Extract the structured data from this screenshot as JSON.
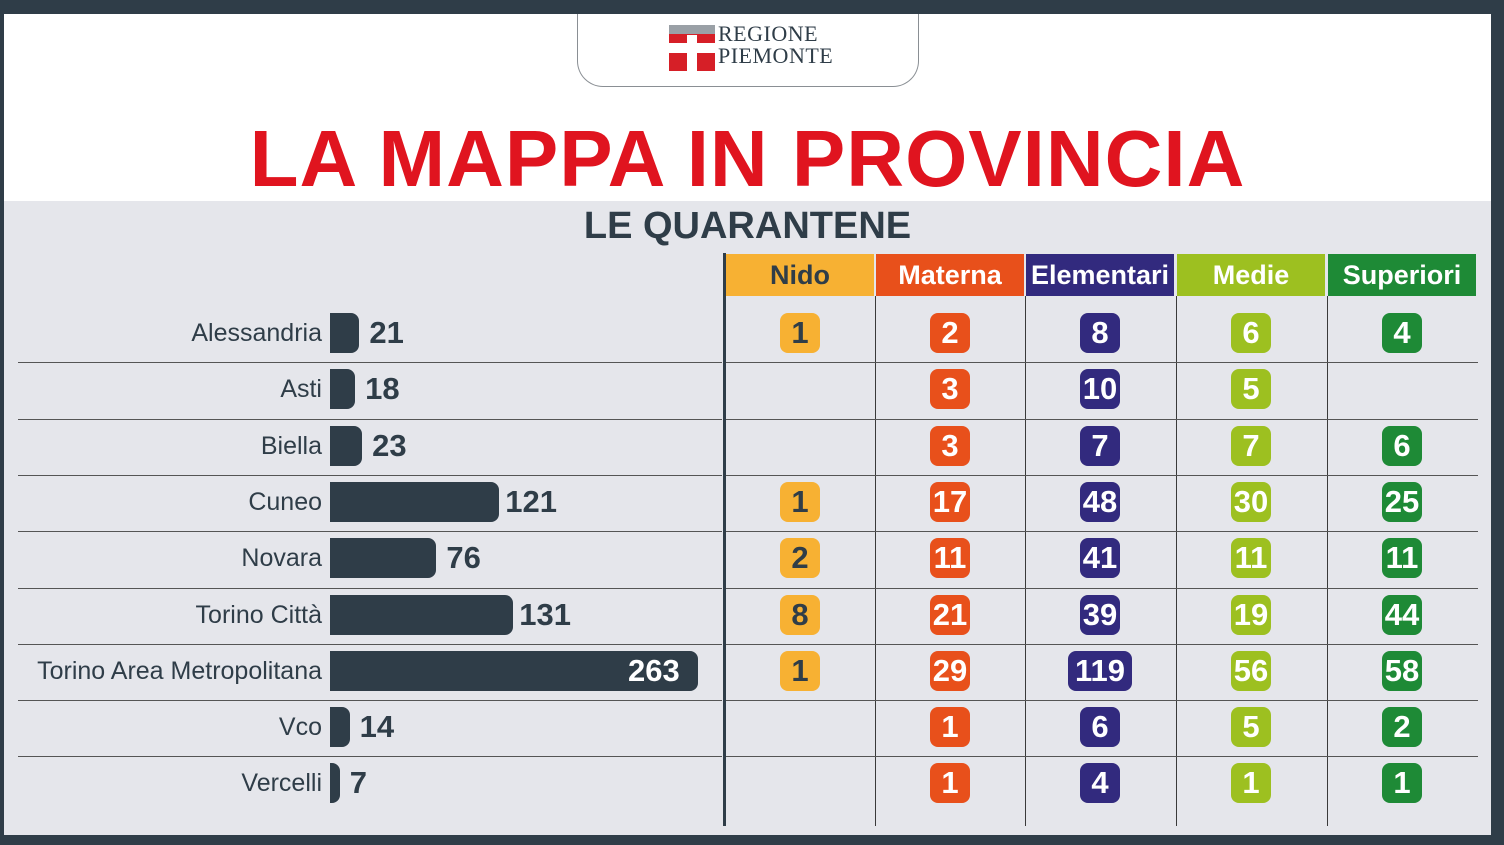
{
  "logo": {
    "line1": "REGIONE",
    "line2": "PIEMONTE"
  },
  "title": "LA MAPPA IN PROVINCIA",
  "subtitle": "LE QUARANTENE",
  "colors": {
    "dark": "#2f3d48",
    "red_title": "#e0141f",
    "nido": "#f7b133",
    "materna": "#e8501b",
    "elementari": "#322a7e",
    "medie": "#9dc020",
    "superiori": "#1e8a36"
  },
  "chart_data": {
    "type": "table",
    "columns": [
      "Nido",
      "Materna",
      "Elementari",
      "Medie",
      "Superiori"
    ],
    "rows": [
      {
        "province": "Alessandria",
        "total": 21,
        "values": [
          1,
          2,
          8,
          6,
          4
        ]
      },
      {
        "province": "Asti",
        "total": 18,
        "values": [
          null,
          3,
          10,
          5,
          null
        ]
      },
      {
        "province": "Biella",
        "total": 23,
        "values": [
          null,
          3,
          7,
          7,
          6
        ]
      },
      {
        "province": "Cuneo",
        "total": 121,
        "values": [
          1,
          17,
          48,
          30,
          25
        ]
      },
      {
        "province": "Novara",
        "total": 76,
        "values": [
          2,
          11,
          41,
          11,
          11
        ]
      },
      {
        "province": "Torino Città",
        "total": 131,
        "values": [
          8,
          21,
          39,
          19,
          44
        ]
      },
      {
        "province": "Torino Area Metropolitana",
        "total": 263,
        "values": [
          1,
          29,
          119,
          56,
          58
        ]
      },
      {
        "province": "Vco",
        "total": 14,
        "values": [
          null,
          1,
          6,
          5,
          2
        ]
      },
      {
        "province": "Vercelli",
        "total": 7,
        "values": [
          null,
          1,
          4,
          1,
          1
        ]
      }
    ]
  }
}
